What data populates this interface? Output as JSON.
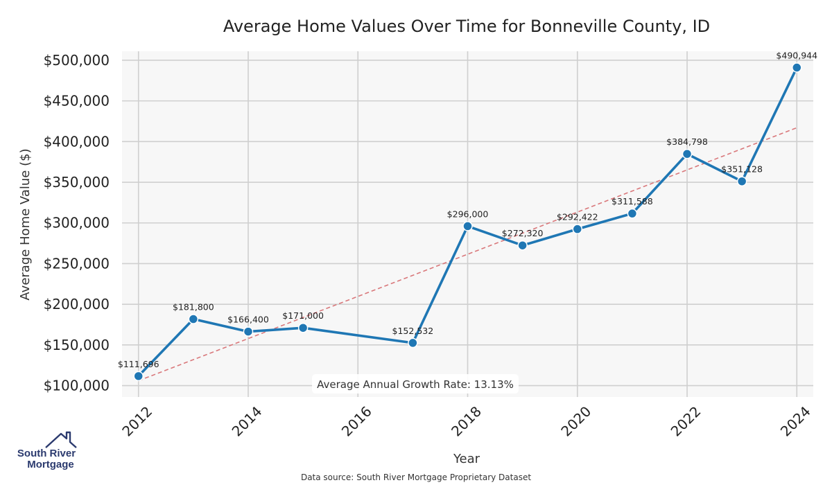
{
  "chart_data": {
    "type": "line",
    "title": "Average Home Values Over Time for Bonneville County, ID",
    "xlabel": "Year",
    "ylabel": "Average Home Value ($)",
    "x": [
      2012,
      2013,
      2014,
      2015,
      2017,
      2018,
      2019,
      2020,
      2021,
      2022,
      2023,
      2024
    ],
    "values": [
      111696,
      181800,
      166400,
      171000,
      152532,
      296000,
      272320,
      292422,
      311588,
      384798,
      351128,
      490944
    ],
    "point_labels": [
      "$111,696",
      "$181,800",
      "$166,400",
      "$171,000",
      "$152,532",
      "$296,000",
      "$272,320",
      "$292,422",
      "$311,588",
      "$384,798",
      "$351,128",
      "$490,944"
    ],
    "xticks": [
      2012,
      2014,
      2016,
      2018,
      2020,
      2022,
      2024
    ],
    "xtick_labels": [
      "2012",
      "2014",
      "2016",
      "2018",
      "2020",
      "2022",
      "2024"
    ],
    "yticks": [
      100000,
      150000,
      200000,
      250000,
      300000,
      350000,
      400000,
      450000,
      500000
    ],
    "ytick_labels": [
      "$100,000",
      "$150,000",
      "$200,000",
      "$250,000",
      "$300,000",
      "$350,000",
      "$400,000",
      "$450,000",
      "$500,000"
    ],
    "xlim": [
      2011.7,
      2024.3
    ],
    "ylim": [
      86000,
      511000
    ],
    "grid": true,
    "trendline": {
      "x": [
        2012,
        2024
      ],
      "y": [
        106000,
        417000
      ],
      "style": "dashed",
      "color": "#d9777a"
    },
    "series_color": "#1f77b4",
    "annotation": "Average Annual Growth Rate: 13.13%",
    "source": "Data source: South River Mortgage Proprietary Dataset"
  },
  "logo": {
    "line1": "South River",
    "line2": "Mortgage",
    "icon": "house-outline-icon",
    "color": "#2b3a6e"
  }
}
